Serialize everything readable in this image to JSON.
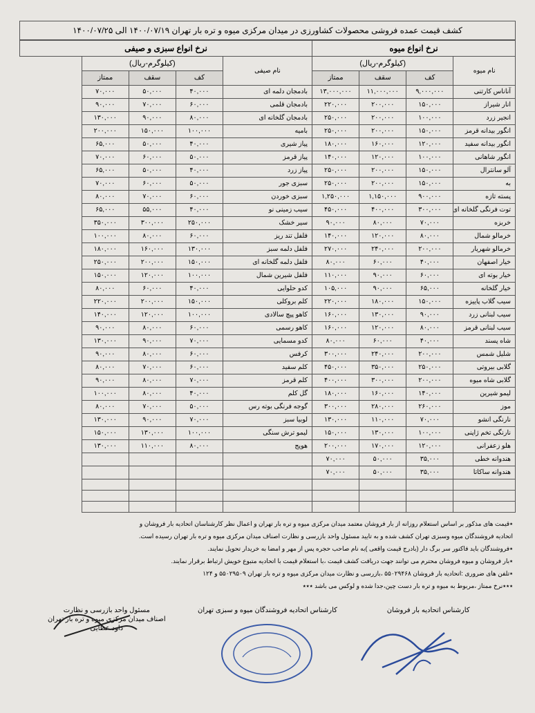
{
  "title": "کشف قیمت عمده فروشی محصولات کشاورزی در میدان مرکزی میوه و تره بار تهران ۱۴۰۰/۰۷/۱۹ الی ۱۴۰۰/۰۷/۲۵",
  "headers": {
    "fruit_section": "نرخ انواع میوه",
    "veg_section": "نرخ انواع سبزی و صیفی",
    "unit": "(کیلوگرم-ریال)",
    "fruit_name": "نام میوه",
    "veg_name": "نام صیفی",
    "floor": "کف",
    "ceiling": "سقف",
    "premium": "ممتاز"
  },
  "fruit_rows": [
    {
      "name": "آناناس کارتنی",
      "floor": "۹,۰۰۰,۰۰۰",
      "ceil": "۱۱,۰۰۰,۰۰۰",
      "prem": "۱۳,۰۰۰,۰۰۰"
    },
    {
      "name": "انار شیراز",
      "floor": "۱۵۰,۰۰۰",
      "ceil": "۲۰۰,۰۰۰",
      "prem": "۲۲۰,۰۰۰"
    },
    {
      "name": "انجیر زرد",
      "floor": "۱۰۰,۰۰۰",
      "ceil": "۲۰۰,۰۰۰",
      "prem": "۲۵۰,۰۰۰"
    },
    {
      "name": "انگور بیدانه قرمز",
      "floor": "۱۵۰,۰۰۰",
      "ceil": "۲۰۰,۰۰۰",
      "prem": "۲۵۰,۰۰۰"
    },
    {
      "name": "انگور بیدانه سفید",
      "floor": "۱۲۰,۰۰۰",
      "ceil": "۱۶۰,۰۰۰",
      "prem": "۱۸۰,۰۰۰"
    },
    {
      "name": "انگور شاهانی",
      "floor": "۱۰۰,۰۰۰",
      "ceil": "۱۲۰,۰۰۰",
      "prem": "۱۴۰,۰۰۰"
    },
    {
      "name": "آلو سانترال",
      "floor": "۱۵۰,۰۰۰",
      "ceil": "۲۰۰,۰۰۰",
      "prem": "۲۵۰,۰۰۰"
    },
    {
      "name": "به",
      "floor": "۱۵۰,۰۰۰",
      "ceil": "۲۰۰,۰۰۰",
      "prem": "۲۵۰,۰۰۰"
    },
    {
      "name": "پسته تازه",
      "floor": "۹۰۰,۰۰۰",
      "ceil": "۱,۱۵۰,۰۰۰",
      "prem": "۱,۲۵۰,۰۰۰"
    },
    {
      "name": "توت فرنگی گلخانه ای",
      "floor": "۳۰۰,۰۰۰",
      "ceil": "۴۰۰,۰۰۰",
      "prem": "۴۵۰,۰۰۰"
    },
    {
      "name": "خربزه",
      "floor": "۷۰,۰۰۰",
      "ceil": "۸۰,۰۰۰",
      "prem": "۹۰,۰۰۰"
    },
    {
      "name": "خرمالو شمال",
      "floor": "۸۰,۰۰۰",
      "ceil": "۱۲۰,۰۰۰",
      "prem": "۱۴۰,۰۰۰"
    },
    {
      "name": "خرمالو شهریار",
      "floor": "۲۰۰,۰۰۰",
      "ceil": "۲۴۰,۰۰۰",
      "prem": "۲۷۰,۰۰۰"
    },
    {
      "name": "خیار اصفهان",
      "floor": "۴۰,۰۰۰",
      "ceil": "۶۰,۰۰۰",
      "prem": "۸۰,۰۰۰"
    },
    {
      "name": "خیار بوته ای",
      "floor": "۶۰,۰۰۰",
      "ceil": "۹۰,۰۰۰",
      "prem": "۱۱۰,۰۰۰"
    },
    {
      "name": "خیار گلخانه",
      "floor": "۶۵,۰۰۰",
      "ceil": "۹۰,۰۰۰",
      "prem": "۱۰۵,۰۰۰"
    },
    {
      "name": "سیب گلاب پاییزه",
      "floor": "۱۵۰,۰۰۰",
      "ceil": "۱۸۰,۰۰۰",
      "prem": "۲۲۰,۰۰۰"
    },
    {
      "name": "سیب لبنانی زرد",
      "floor": "۹۰,۰۰۰",
      "ceil": "۱۳۰,۰۰۰",
      "prem": "۱۶۰,۰۰۰"
    },
    {
      "name": "سیب لبنانی قرمز",
      "floor": "۸۰,۰۰۰",
      "ceil": "۱۲۰,۰۰۰",
      "prem": "۱۶۰,۰۰۰"
    },
    {
      "name": "شاه پسند",
      "floor": "۴۰,۰۰۰",
      "ceil": "۶۰,۰۰۰",
      "prem": "۸۰,۰۰۰"
    },
    {
      "name": "شلیل شمس",
      "floor": "۲۰۰,۰۰۰",
      "ceil": "۲۴۰,۰۰۰",
      "prem": "۳۰۰,۰۰۰"
    },
    {
      "name": "گلابی بیروتی",
      "floor": "۲۵۰,۰۰۰",
      "ceil": "۳۵۰,۰۰۰",
      "prem": "۴۵۰,۰۰۰"
    },
    {
      "name": "گلابی شاه میوه",
      "floor": "۲۰۰,۰۰۰",
      "ceil": "۳۰۰,۰۰۰",
      "prem": "۴۰۰,۰۰۰"
    },
    {
      "name": "لیمو شیرین",
      "floor": "۱۴۰,۰۰۰",
      "ceil": "۱۶۰,۰۰۰",
      "prem": "۱۸۰,۰۰۰"
    },
    {
      "name": "موز",
      "floor": "۲۶۰,۰۰۰",
      "ceil": "۲۸۰,۰۰۰",
      "prem": "۳۰۰,۰۰۰"
    },
    {
      "name": "نارنگی انشو",
      "floor": "۷۰,۰۰۰",
      "ceil": "۱۱۰,۰۰۰",
      "prem": "۱۳۰,۰۰۰"
    },
    {
      "name": "نارنگی تخم ژاپنی",
      "floor": "۱۰۰,۰۰۰",
      "ceil": "۱۳۰,۰۰۰",
      "prem": "۱۵۰,۰۰۰"
    },
    {
      "name": "هلو زعفرانی",
      "floor": "۱۲۰,۰۰۰",
      "ceil": "۱۷۰,۰۰۰",
      "prem": "۲۰۰,۰۰۰"
    },
    {
      "name": "هندوانه خطی",
      "floor": "۳۵,۰۰۰",
      "ceil": "۵۰,۰۰۰",
      "prem": "۷۰,۰۰۰"
    },
    {
      "name": "هندوانه ساکاتا",
      "floor": "۳۵,۰۰۰",
      "ceil": "۵۰,۰۰۰",
      "prem": "۷۰,۰۰۰"
    },
    {
      "name": "",
      "floor": "",
      "ceil": "",
      "prem": ""
    },
    {
      "name": "",
      "floor": "",
      "ceil": "",
      "prem": ""
    },
    {
      "name": "",
      "floor": "",
      "ceil": "",
      "prem": ""
    }
  ],
  "veg_rows": [
    {
      "name": "بادمجان دلمه ای",
      "floor": "۴۰,۰۰۰",
      "ceil": "۵۰,۰۰۰",
      "prem": "۷۰,۰۰۰"
    },
    {
      "name": "بادمجان قلمی",
      "floor": "۶۰,۰۰۰",
      "ceil": "۷۰,۰۰۰",
      "prem": "۹۰,۰۰۰"
    },
    {
      "name": "بادمجان گلخانه ای",
      "floor": "۸۰,۰۰۰",
      "ceil": "۹۰,۰۰۰",
      "prem": "۱۳۰,۰۰۰"
    },
    {
      "name": "بامیه",
      "floor": "۱۰۰,۰۰۰",
      "ceil": "۱۵۰,۰۰۰",
      "prem": "۲۰۰,۰۰۰"
    },
    {
      "name": "پیاز شیری",
      "floor": "۴۰,۰۰۰",
      "ceil": "۵۰,۰۰۰",
      "prem": "۶۵,۰۰۰"
    },
    {
      "name": "پیاز قرمز",
      "floor": "۵۰,۰۰۰",
      "ceil": "۶۰,۰۰۰",
      "prem": "۷۰,۰۰۰"
    },
    {
      "name": "پیاز زرد",
      "floor": "۴۰,۰۰۰",
      "ceil": "۵۰,۰۰۰",
      "prem": "۶۵,۰۰۰"
    },
    {
      "name": "سبزی جور",
      "floor": "۵۰,۰۰۰",
      "ceil": "۶۰,۰۰۰",
      "prem": "۷۰,۰۰۰"
    },
    {
      "name": "سبزی خوردن",
      "floor": "۶۰,۰۰۰",
      "ceil": "۷۰,۰۰۰",
      "prem": "۸۰,۰۰۰"
    },
    {
      "name": "سیب زمینی نو",
      "floor": "۴۰,۰۰۰",
      "ceil": "۵۵,۰۰۰",
      "prem": "۶۵,۰۰۰"
    },
    {
      "name": "سیر خشک",
      "floor": "۲۵۰,۰۰۰",
      "ceil": "۳۰۰,۰۰۰",
      "prem": "۳۵۰,۰۰۰"
    },
    {
      "name": "فلفل تند ریز",
      "floor": "۶۰,۰۰۰",
      "ceil": "۸۰,۰۰۰",
      "prem": "۱۰۰,۰۰۰"
    },
    {
      "name": "فلفل دلمه سبز",
      "floor": "۱۳۰,۰۰۰",
      "ceil": "۱۶۰,۰۰۰",
      "prem": "۱۸۰,۰۰۰"
    },
    {
      "name": "فلفل دلمه گلخانه ای",
      "floor": "۱۵۰,۰۰۰",
      "ceil": "۲۰۰,۰۰۰",
      "prem": "۲۵۰,۰۰۰"
    },
    {
      "name": "فلفل شیرین شمال",
      "floor": "۱۰۰,۰۰۰",
      "ceil": "۱۲۰,۰۰۰",
      "prem": "۱۵۰,۰۰۰"
    },
    {
      "name": "کدو حلوایی",
      "floor": "۴۰,۰۰۰",
      "ceil": "۶۰,۰۰۰",
      "prem": "۸۰,۰۰۰"
    },
    {
      "name": "کلم بروکلی",
      "floor": "۱۵۰,۰۰۰",
      "ceil": "۲۰۰,۰۰۰",
      "prem": "۲۲۰,۰۰۰"
    },
    {
      "name": "کاهو پیچ سالادی",
      "floor": "۱۰۰,۰۰۰",
      "ceil": "۱۲۰,۰۰۰",
      "prem": "۱۴۰,۰۰۰"
    },
    {
      "name": "کاهو رسمی",
      "floor": "۶۰,۰۰۰",
      "ceil": "۸۰,۰۰۰",
      "prem": "۹۰,۰۰۰"
    },
    {
      "name": "کدو مسمایی",
      "floor": "۷۰,۰۰۰",
      "ceil": "۹۰,۰۰۰",
      "prem": "۱۳۰,۰۰۰"
    },
    {
      "name": "کرفس",
      "floor": "۶۰,۰۰۰",
      "ceil": "۸۰,۰۰۰",
      "prem": "۹۰,۰۰۰"
    },
    {
      "name": "کلم سفید",
      "floor": "۶۰,۰۰۰",
      "ceil": "۷۰,۰۰۰",
      "prem": "۸۰,۰۰۰"
    },
    {
      "name": "کلم قرمز",
      "floor": "۷۰,۰۰۰",
      "ceil": "۸۰,۰۰۰",
      "prem": "۹۰,۰۰۰"
    },
    {
      "name": "گل کلم",
      "floor": "۴۰,۰۰۰",
      "ceil": "۸۰,۰۰۰",
      "prem": "۱۰۰,۰۰۰"
    },
    {
      "name": "گوجه فرنگی بوته رس",
      "floor": "۵۰,۰۰۰",
      "ceil": "۷۰,۰۰۰",
      "prem": "۸۰,۰۰۰"
    },
    {
      "name": "لوبیا سبز",
      "floor": "۷۰,۰۰۰",
      "ceil": "۹۰,۰۰۰",
      "prem": "۱۳۰,۰۰۰"
    },
    {
      "name": "لیمو ترش سنگی",
      "floor": "۱۰۰,۰۰۰",
      "ceil": "۱۳۰,۰۰۰",
      "prem": "۱۵۰,۰۰۰"
    },
    {
      "name": "هویج",
      "floor": "۸۰,۰۰۰",
      "ceil": "۱۱۰,۰۰۰",
      "prem": "۱۳۰,۰۰۰"
    },
    {
      "name": "",
      "floor": "",
      "ceil": "",
      "prem": ""
    },
    {
      "name": "",
      "floor": "",
      "ceil": "",
      "prem": ""
    },
    {
      "name": "",
      "floor": "",
      "ceil": "",
      "prem": ""
    },
    {
      "name": "",
      "floor": "",
      "ceil": "",
      "prem": ""
    },
    {
      "name": "",
      "floor": "",
      "ceil": "",
      "prem": ""
    }
  ],
  "notes": [
    "٭قیمت های مذکور بر اساس استعلام روزانه از بار فروشان معتمد میدان مرکزی میوه و تره بار تهران و اعمال نظر کارشناسان اتحادیه بار فروشان و",
    "اتحادیه فروشندگان میوه وسبزی تهران کشف شده و به تایید مسئول واحد بازرسی و نظارت اصناف میدان مرکزی میوه و تره بار تهران رسیده است.",
    "٭فروشندگان باید فاکتور سر برگ دار (بادرج قیمت واقعی )به نام صاحب حجره پس از مهر و امضا به خریدار تحویل نمایند.",
    "٭بار فروشان و میوه فروشان محترم می توانند جهت دریافت کشف قیمت ،با استعلام قیمت با اتحادیه متبوع خویش ارتباط برقرار نمایند.",
    "٭تلفن های ضروری :اتحادیه بار فروشان ۵۵۰۲۹۴۶۸ ،بازرسی و نظارت میدان مرکزی میوه و تره بار تهران ۵۵۰۲۹۵۰۹ و ۱۲۴",
    "٭٭٭نرخ ممتاز ،مربوط به میوه و تره بار دست چین،جدا شده و لوکس می باشد ٭٭٭"
  ],
  "signatures": {
    "right_title": "کارشناس اتحادیه بار فروشان",
    "center_title": "کارشناس اتحادیه فروشندگان میوه و سبزی تهران",
    "left_title1": "مسئول واحد بازرسی و نظارت",
    "left_title2": "اصناف میدان مرکزی میوه و تره بار تهران",
    "left_name": "داود عطایی"
  },
  "colors": {
    "page_bg": "#e8e6e2",
    "border": "#555555",
    "header_bg": "#d8d6d2",
    "stamp": "#3b5ba8",
    "sig_blue": "#2a4a9a",
    "sig_black": "#222222"
  }
}
